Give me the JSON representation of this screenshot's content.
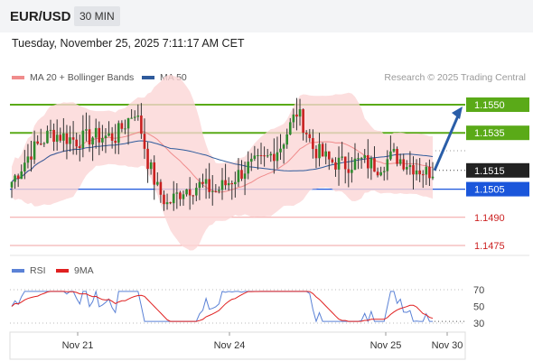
{
  "header": {
    "symbol": "EUR/USD",
    "timeframe": "30 MIN"
  },
  "datetime": "Tuesday, November 25, 2025 7:11:17 AM CET",
  "legend": {
    "ma20": {
      "label": "MA 20 + Bollinger Bands",
      "color": "#f08c8c"
    },
    "ma50": {
      "label": "MA 50",
      "color": "#2f5b9c"
    }
  },
  "credit": "Research © 2025 Trading Central",
  "rsi_legend": {
    "rsi": {
      "label": "RSI",
      "color": "#5b82d6"
    },
    "ma9": {
      "label": "9MA",
      "color": "#e02020"
    }
  },
  "chart_data": [
    {
      "type": "candlestick",
      "y_range": [
        1.1466,
        1.1561
      ],
      "x_labels": [
        "Nov 21",
        "Nov 24",
        "Nov 25",
        "Nov 30"
      ],
      "levels": [
        {
          "value": 1.155,
          "label": "1.1550",
          "kind": "resistance",
          "color": "#5aaa18"
        },
        {
          "value": 1.1535,
          "label": "1.1535",
          "kind": "resistance",
          "color": "#5aaa18"
        },
        {
          "value": 1.1515,
          "label": "1.1515",
          "kind": "current",
          "color": "#222222"
        },
        {
          "value": 1.1505,
          "label": "1.1505",
          "kind": "pivot",
          "color": "#1a56db"
        },
        {
          "value": 1.149,
          "label": "1.1490",
          "kind": "support",
          "color": "#cc2222"
        },
        {
          "value": 1.1475,
          "label": "1.1475",
          "kind": "support",
          "color": "#cc2222"
        }
      ],
      "forecast_arrow": {
        "from": 1.1515,
        "to": 1.155,
        "direction": "up"
      }
    },
    {
      "type": "line",
      "series": [
        {
          "name": "RSI"
        },
        {
          "name": "9MA"
        }
      ],
      "y_ticks": [
        70,
        50,
        30
      ],
      "y_range": [
        20,
        80
      ]
    }
  ]
}
